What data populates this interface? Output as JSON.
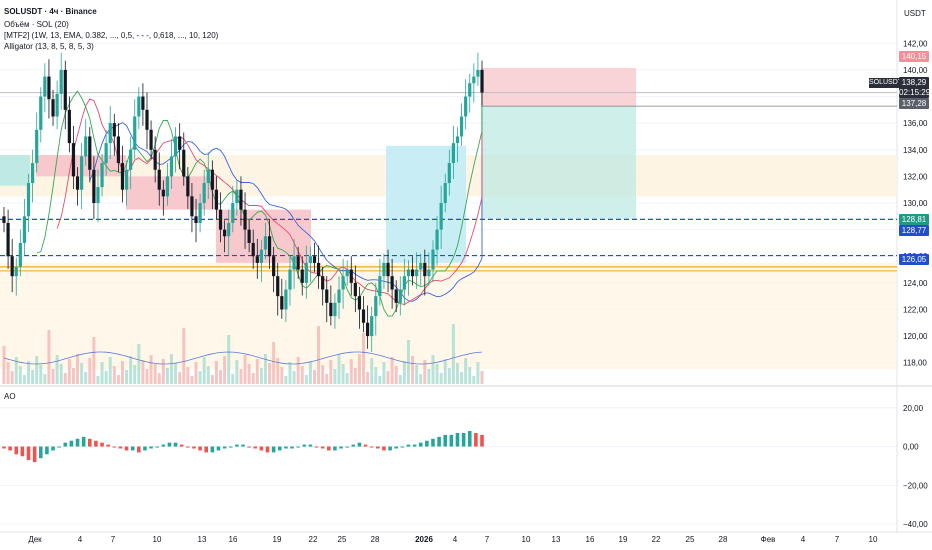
{
  "legend": {
    "symbol": "SOLUSDT · 4ч · Binance",
    "volume": "Объём · SOL (20)",
    "mtf": "[MTF2] (1W, 13, EMA, 0.382, ..., 0,5, - - -, 0,618, ..., 10, 120)",
    "alligator": "Alligator (13, 8, 5, 8, 5, 3)",
    "ao": "AO"
  },
  "axis": {
    "currency": "USDT",
    "price_ticks": [
      "142,00",
      "140,00",
      "138,00",
      "136,00",
      "134,00",
      "132,00",
      "130,00",
      "128,00",
      "126,00",
      "124,00",
      "122,00",
      "120,00",
      "118,00"
    ],
    "ao_ticks": [
      "20,00",
      "0,00",
      "−20,00",
      "−40,00"
    ],
    "time_ticks": [
      "Дек",
      "4",
      "7",
      "10",
      "13",
      "16",
      "19",
      "22",
      "25",
      "28",
      "2026",
      "4",
      "7",
      "10",
      "13",
      "16",
      "19",
      "22",
      "25",
      "28",
      "Фев",
      "4",
      "7",
      "10"
    ]
  },
  "price_tags": {
    "sl": "140,15",
    "symbol_name": "SOLUSDT",
    "last": "138,29",
    "countdown": "02:15:29",
    "entry": "137,28",
    "tp": "128,81",
    "level_blue": "128,77",
    "level_126": "126,05"
  },
  "colors": {
    "up": "#26a69a",
    "down": "#131722",
    "ao_up": "#26a69a",
    "ao_down": "#ef5350",
    "blue_level": "#1f4fcc",
    "orange_level": "#f5a623",
    "sl_zone": "#f7c9cd",
    "tp_zone": "#bfe9e3"
  },
  "chart_data": {
    "type": "candlestick",
    "ylim": [
      117,
      143
    ],
    "ao_ylim": [
      -42,
      24
    ],
    "levels": [
      128.77,
      126.05,
      125.2,
      124.9
    ],
    "position": {
      "entry": 137.28,
      "stop": 140.15,
      "target": 128.81
    },
    "candles_close": [
      128.5,
      126.0,
      124.5,
      125.2,
      127.0,
      129.0,
      131.5,
      133.0,
      135.5,
      138.0,
      139.5,
      137.8,
      136.5,
      138.2,
      140.0,
      137.0,
      134.5,
      132.0,
      131.0,
      133.5,
      135.0,
      132.5,
      130.0,
      131.2,
      133.0,
      134.5,
      136.0,
      135.0,
      133.0,
      131.0,
      132.5,
      134.0,
      136.5,
      138.0,
      137.0,
      135.5,
      134.0,
      132.5,
      131.0,
      130.5,
      132.0,
      133.5,
      135.0,
      134.0,
      132.0,
      130.5,
      129.0,
      128.5,
      130.0,
      131.5,
      132.5,
      131.0,
      129.5,
      128.0,
      127.5,
      128.5,
      130.0,
      131.0,
      129.5,
      128.0,
      127.0,
      126.0,
      125.5,
      126.5,
      127.5,
      126.0,
      124.5,
      123.0,
      122.0,
      123.5,
      125.0,
      126.0,
      125.0,
      124.0,
      125.5,
      126.0,
      125.5,
      124.5,
      123.5,
      122.5,
      121.5,
      122.5,
      123.5,
      124.5,
      125.0,
      124.0,
      123.0,
      122.0,
      121.0,
      120.0,
      121.5,
      123.0,
      124.5,
      125.5,
      124.5,
      123.5,
      122.5,
      123.5,
      124.5,
      125.0,
      124.5,
      125.0,
      125.5,
      124.5,
      125.0,
      126.5,
      128.0,
      130.0,
      131.5,
      133.0,
      134.5,
      135.0,
      136.5,
      138.0,
      139.0,
      139.5,
      140.0,
      138.3
    ],
    "ao_values": [
      -1,
      -2,
      -4,
      -5,
      -7,
      -8,
      -6,
      -4,
      -2,
      0,
      2,
      3,
      4,
      5,
      4,
      3,
      2,
      1,
      0,
      -1,
      -2,
      -2,
      -3,
      -2,
      -1,
      0,
      1,
      2,
      2,
      1,
      0,
      -1,
      -2,
      -3,
      -3,
      -2,
      -1,
      0,
      1,
      1,
      0,
      -1,
      -2,
      -3,
      -3,
      -2,
      -1,
      -1,
      0,
      1,
      1,
      0,
      -1,
      -2,
      -2,
      -1,
      0,
      1,
      2,
      1,
      0,
      -1,
      -2,
      -2,
      -1,
      0,
      1,
      1,
      2,
      3,
      4,
      5,
      6,
      6,
      7,
      7,
      8,
      7,
      6
    ]
  }
}
